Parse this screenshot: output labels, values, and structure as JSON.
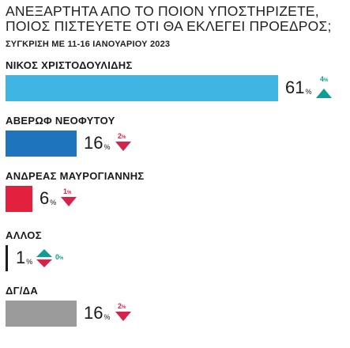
{
  "title_line1": "ΑΝΕΞΑΡΤΗΤΑ ΑΠΟ ΤΟ ΠΟΙΟΝ ΥΠΟΣΤΗΡΙΖΕΤΕ,",
  "title_line2": "ΠΟΙΟΣ ΠΙΣΤΕΥΕΤΕ ΟΤΙ ΘΑ ΕΚΛΕΓΕΙ ΠΡΟΕΔΡΟΣ;",
  "subtitle": "ΣΥΓΚΡΙΣΗ ΜΕ 11-16 ΙΑΝΟΥΑΡΙΟΥ 2023",
  "colors": {
    "up": "#0d9f95",
    "down": "#d6234a",
    "text": "#1a1a1a"
  },
  "chart_data": {
    "type": "bar",
    "orientation": "horizontal",
    "title": "ΑΝΕΞΑΡΤΗΤΑ ΑΠΟ ΤΟ ΠΟΙΟΝ ΥΠΟΣΤΗΡΙΖΕΤΕ, ΠΟΙΟΣ ΠΙΣΤΕΥΕΤΕ ΟΤΙ ΘΑ ΕΚΛΕΓΕΙ ΠΡΟΕΔΡΟΣ;",
    "subtitle": "ΣΥΓΚΡΙΣΗ ΜΕ 11-16 ΙΑΝΟΥΑΡΙΟΥ 2023",
    "unit": "%",
    "xlim": [
      0,
      61
    ],
    "categories": [
      "ΝΙΚΟΣ ΧΡΙΣΤΟΔΟΥΛΙΔΗΣ",
      "ΑΒΕΡΩΦ ΝΕΟΦΥΤΟΥ",
      "ΑΝΔΡΕΑΣ ΜΑΥΡΟΓΙΑΝΝΗΣ",
      "ΑΛΛΟΣ",
      "ΔΓ/ΔΑ"
    ],
    "values": [
      61,
      16,
      6,
      1,
      16
    ],
    "changes": [
      {
        "value": 4,
        "direction": "up"
      },
      {
        "value": 2,
        "direction": "down"
      },
      {
        "value": 1,
        "direction": "down"
      },
      {
        "value": 0,
        "direction": "flat"
      },
      {
        "value": 2,
        "direction": "down"
      }
    ],
    "bar_colors": [
      "#3eb5e3",
      "#1f74be",
      "#e4203f",
      "#1c1c1c",
      "#9b9b9b"
    ],
    "value_labels": [
      "61",
      "16",
      "6",
      "1",
      "16"
    ],
    "percent_sign": "%"
  }
}
